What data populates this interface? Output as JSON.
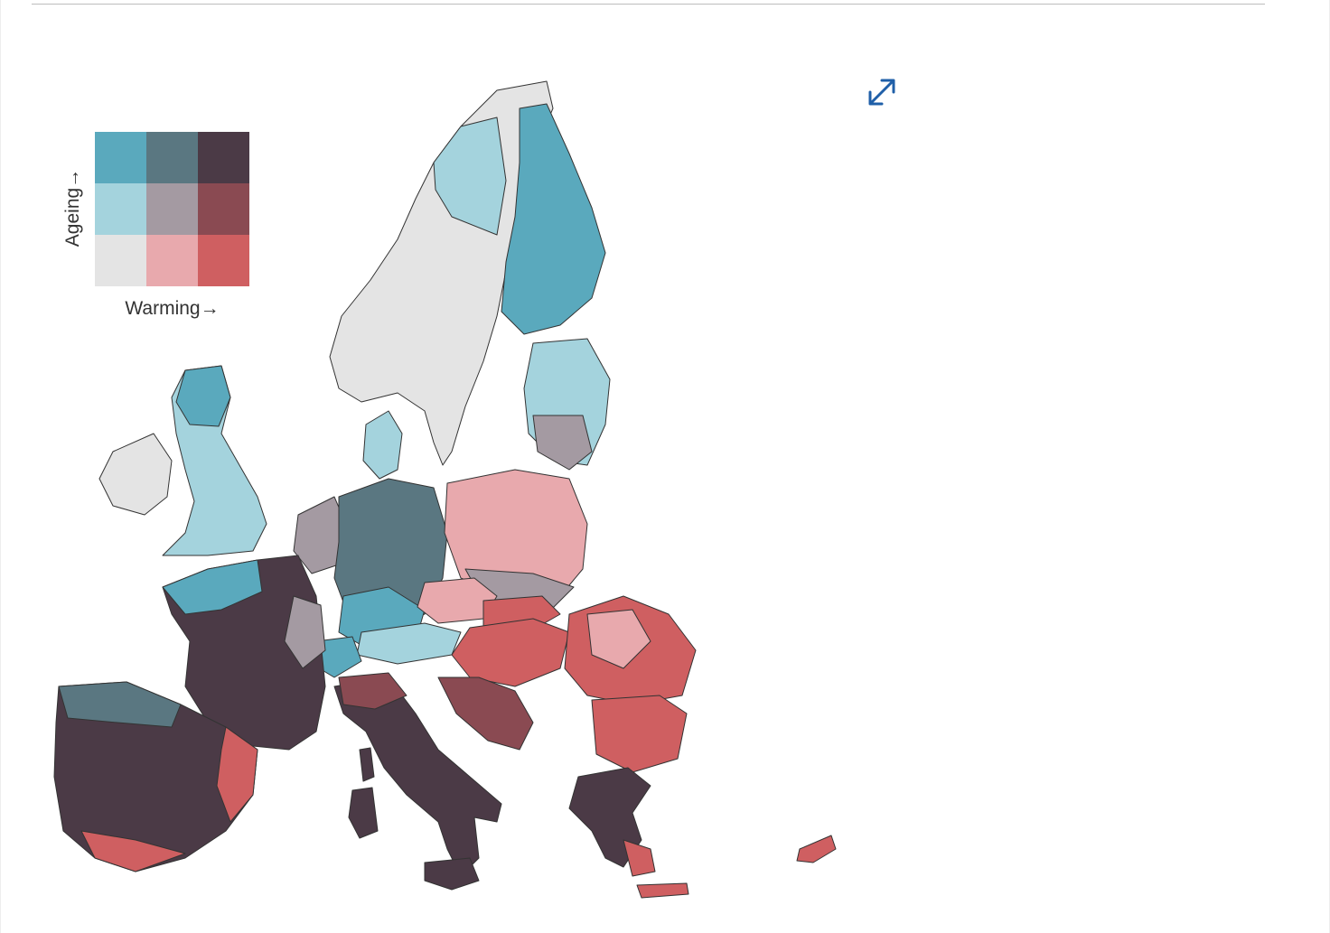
{
  "legend": {
    "y_label": "Ageing→",
    "x_label": "Warming→",
    "colors": [
      [
        "#5aa9bd",
        "#5a7781",
        "#4b3a46"
      ],
      [
        "#a4d3dd",
        "#a49aa2",
        "#8a4a52"
      ],
      [
        "#e4e4e4",
        "#e8a9ad",
        "#cf5f61"
      ]
    ]
  },
  "palette": {
    "land_none": "#e4e4e4",
    "border": "#333333"
  },
  "controls": {
    "expand_icon": "expand-arrows-icon",
    "accent": "#1f5fa8"
  }
}
